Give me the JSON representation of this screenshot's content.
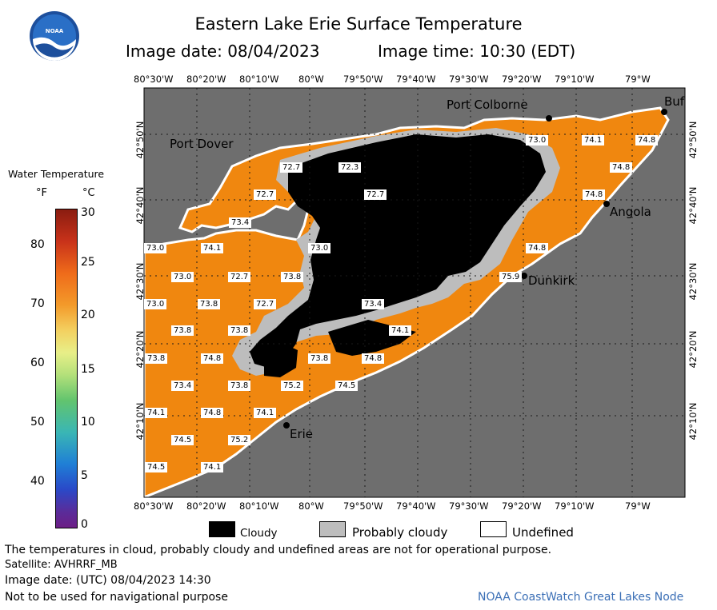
{
  "header": {
    "title": "Eastern Lake Erie Surface Temperature",
    "image_date": "Image date: 08/04/2023",
    "image_time": "Image time: 10:30 (EDT)",
    "logo_text": "NOAA"
  },
  "axes": {
    "lon_ticks": [
      "80°30'W",
      "80°20'W",
      "80°10'W",
      "80°W",
      "79°50'W",
      "79°40'W",
      "79°30'W",
      "79°20'W",
      "79°10'W",
      "79°W"
    ],
    "lat_ticks": [
      "42°50'N",
      "42°40'N",
      "42°30'N",
      "42°20'N",
      "42°10'N"
    ]
  },
  "places": [
    "Port Colborne",
    "Buf",
    "Port Dover",
    "Angola",
    "Dunkirk",
    "Erie"
  ],
  "temperature_labels": [
    "73.0",
    "74.1",
    "74.8",
    "74.8",
    "72.7",
    "72.3",
    "72.7",
    "72.7",
    "74.8",
    "73.4",
    "73.0",
    "74.1",
    "74.8",
    "73.0",
    "73.0",
    "72.7",
    "73.8",
    "75.9",
    "73.0",
    "73.8",
    "72.7",
    "73.4",
    "73.8",
    "73.8",
    "74.1",
    "73.8",
    "74.8",
    "73.8",
    "74.8",
    "73.4",
    "73.8",
    "75.2",
    "74.5",
    "74.1",
    "74.8",
    "74.1",
    "74.5",
    "75.2",
    "74.5",
    "74.1"
  ],
  "legend": {
    "title": "Water Temperature",
    "unit_f": "°F",
    "unit_c": "°C",
    "f_ticks": [
      "80",
      "70",
      "60",
      "50",
      "40"
    ],
    "c_ticks": [
      "30",
      "25",
      "20",
      "15",
      "10",
      "5",
      "0"
    ]
  },
  "key": {
    "cloudy": "Cloudy",
    "probably_cloudy": "Probably cloudy",
    "undefined": "Undefined"
  },
  "footer": {
    "note": "The temperatures in cloud, probably cloudy and undefined areas are not for operational purpose.",
    "satellite": "Satellite: AVHRRF_MB",
    "utc_date": "Image date: (UTC) 08/04/2023  14:30",
    "nav": "Not to be used for navigational purpose",
    "credit": "NOAA CoastWatch Great Lakes Node"
  },
  "colors": {
    "land": "#6e6e6e",
    "water": "#f0870f",
    "cloud": "#000000",
    "probably_cloudy": "#bdbdbd",
    "undefined": "#ffffff",
    "credit": "#3b6fb6"
  }
}
